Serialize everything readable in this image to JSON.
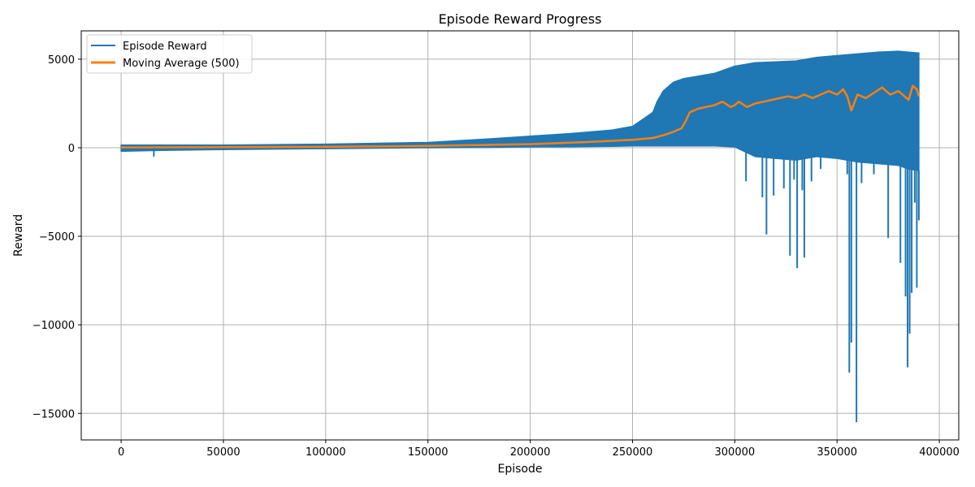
{
  "chart_data": {
    "type": "line",
    "title": "Episode Reward Progress",
    "xlabel": "Episode",
    "ylabel": "Reward",
    "xlim": [
      -19500,
      409500
    ],
    "ylim": [
      -16500,
      6600
    ],
    "xticks": [
      0,
      50000,
      100000,
      150000,
      200000,
      250000,
      300000,
      350000,
      400000
    ],
    "xtick_labels": [
      "0",
      "50000",
      "100000",
      "150000",
      "200000",
      "250000",
      "300000",
      "350000",
      "400000"
    ],
    "yticks": [
      5000,
      0,
      -5000,
      -10000,
      -15000
    ],
    "ytick_labels": [
      "5000",
      "0",
      "−5000",
      "−10000",
      "−15000"
    ],
    "grid": true,
    "legend_position": "top-left",
    "colors": {
      "episode_reward": "#1f77b4",
      "moving_average": "#ff7f0e",
      "grid": "#b0b0b0"
    },
    "series": [
      {
        "name": "Episode Reward",
        "kind": "envelope",
        "x": [
          0,
          20000,
          50000,
          100000,
          150000,
          180000,
          200000,
          220000,
          240000,
          250000,
          255000,
          260000,
          262000,
          265000,
          270000,
          275000,
          280000,
          290000,
          300000,
          310000,
          320000,
          330000,
          340000,
          350000,
          360000,
          370000,
          380000,
          385000,
          390000
        ],
        "max": [
          150,
          150,
          150,
          200,
          300,
          500,
          650,
          800,
          1000,
          1200,
          1600,
          2000,
          2600,
          3200,
          3700,
          3900,
          4000,
          4200,
          4600,
          4800,
          4850,
          4900,
          5100,
          5200,
          5300,
          5400,
          5450,
          5400,
          5350
        ],
        "min": [
          -200,
          -150,
          -100,
          -50,
          0,
          20,
          50,
          60,
          80,
          100,
          100,
          100,
          100,
          100,
          100,
          100,
          100,
          100,
          50,
          -500,
          -600,
          -700,
          -500,
          -600,
          -800,
          -900,
          -1000,
          -1200,
          -1300
        ],
        "spikes": [
          {
            "x": 16000,
            "y": -500
          },
          {
            "x": 305500,
            "y": -1900
          },
          {
            "x": 313500,
            "y": -2800
          },
          {
            "x": 315500,
            "y": -4900
          },
          {
            "x": 319000,
            "y": -2700
          },
          {
            "x": 324000,
            "y": -2300
          },
          {
            "x": 327000,
            "y": -6100
          },
          {
            "x": 329000,
            "y": -1800
          },
          {
            "x": 330500,
            "y": -6800
          },
          {
            "x": 333000,
            "y": -2400
          },
          {
            "x": 334000,
            "y": -6200
          },
          {
            "x": 337500,
            "y": -1900
          },
          {
            "x": 342000,
            "y": -1200
          },
          {
            "x": 355000,
            "y": -1500
          },
          {
            "x": 356000,
            "y": -12700
          },
          {
            "x": 357000,
            "y": -11000
          },
          {
            "x": 359500,
            "y": -15500
          },
          {
            "x": 362000,
            "y": -2000
          },
          {
            "x": 368000,
            "y": -1500
          },
          {
            "x": 375000,
            "y": -5100
          },
          {
            "x": 381000,
            "y": -6500
          },
          {
            "x": 383500,
            "y": -8400
          },
          {
            "x": 384500,
            "y": -12400
          },
          {
            "x": 385500,
            "y": -10500
          },
          {
            "x": 386500,
            "y": -8200
          },
          {
            "x": 388000,
            "y": -3100
          },
          {
            "x": 389000,
            "y": -7900
          },
          {
            "x": 390000,
            "y": -4100
          }
        ]
      },
      {
        "name": "Moving Average (500)",
        "kind": "line",
        "x": [
          0,
          50000,
          100000,
          150000,
          200000,
          230000,
          250000,
          260000,
          265000,
          270000,
          274000,
          276000,
          278000,
          282000,
          286000,
          290000,
          294000,
          298000,
          300000,
          302000,
          306000,
          310000,
          314000,
          318000,
          322000,
          326000,
          330000,
          334000,
          338000,
          342000,
          346000,
          350000,
          353000,
          355000,
          357000,
          360000,
          364000,
          368000,
          372000,
          376000,
          380000,
          383000,
          385000,
          387000,
          389000,
          390000
        ],
        "y": [
          20,
          30,
          50,
          100,
          200,
          330,
          450,
          550,
          700,
          900,
          1100,
          1500,
          2000,
          2200,
          2300,
          2400,
          2600,
          2300,
          2400,
          2600,
          2300,
          2500,
          2600,
          2700,
          2800,
          2900,
          2800,
          3000,
          2800,
          3000,
          3200,
          3000,
          3300,
          2900,
          2100,
          3000,
          2800,
          3100,
          3400,
          3000,
          3200,
          2900,
          2700,
          3500,
          3300,
          2900
        ]
      }
    ]
  }
}
